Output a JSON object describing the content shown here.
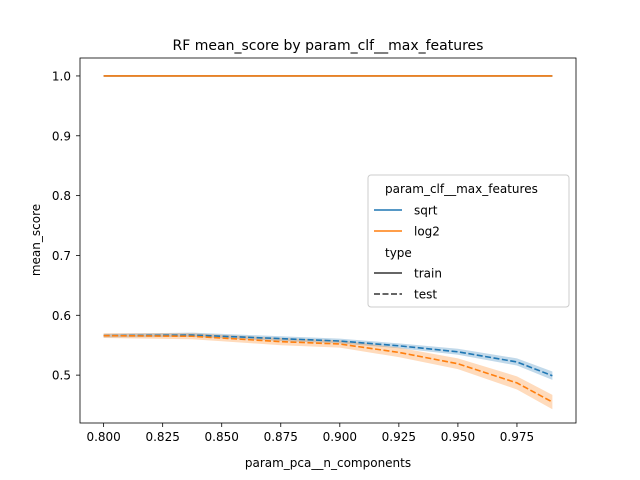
{
  "chart_data": {
    "type": "line",
    "title": "RF mean_score by param_clf__max_features",
    "xlabel": "param_pca__n_components",
    "ylabel": "mean_score",
    "xlim": [
      0.79,
      1.0
    ],
    "ylim": [
      0.42,
      1.03
    ],
    "xticks": [
      0.8,
      0.825,
      0.85,
      0.875,
      0.9,
      0.925,
      0.95,
      0.975
    ],
    "xtick_labels": [
      "0.800",
      "0.825",
      "0.850",
      "0.875",
      "0.900",
      "0.925",
      "0.950",
      "0.975"
    ],
    "yticks": [
      0.5,
      0.6,
      0.7,
      0.8,
      0.9,
      1.0
    ],
    "ytick_labels": [
      "0.5",
      "0.6",
      "0.7",
      "0.8",
      "0.9",
      "1.0"
    ],
    "grid": false,
    "x": [
      0.8,
      0.8375,
      0.875,
      0.9,
      0.925,
      0.95,
      0.975,
      0.99
    ],
    "series": [
      {
        "name": "sqrt",
        "type": "train",
        "color": "#1f77b4",
        "dash": false,
        "values": [
          1.0,
          1.0,
          1.0,
          1.0,
          1.0,
          1.0,
          1.0,
          1.0
        ]
      },
      {
        "name": "log2",
        "type": "train",
        "color": "#ff7f0e",
        "dash": false,
        "values": [
          1.0,
          1.0,
          1.0,
          1.0,
          1.0,
          1.0,
          1.0,
          1.0
        ]
      },
      {
        "name": "sqrt",
        "type": "test",
        "color": "#1f77b4",
        "dash": true,
        "values": [
          0.566,
          0.567,
          0.561,
          0.557,
          0.549,
          0.539,
          0.522,
          0.499
        ],
        "ci_lower": [
          0.563,
          0.564,
          0.557,
          0.553,
          0.545,
          0.534,
          0.516,
          0.492
        ],
        "ci_upper": [
          0.569,
          0.571,
          0.565,
          0.561,
          0.553,
          0.544,
          0.528,
          0.506
        ]
      },
      {
        "name": "log2",
        "type": "test",
        "color": "#ff7f0e",
        "dash": true,
        "values": [
          0.566,
          0.565,
          0.556,
          0.552,
          0.538,
          0.519,
          0.487,
          0.455
        ],
        "ci_lower": [
          0.562,
          0.56,
          0.55,
          0.546,
          0.53,
          0.51,
          0.476,
          0.443
        ],
        "ci_upper": [
          0.57,
          0.57,
          0.562,
          0.558,
          0.546,
          0.528,
          0.498,
          0.467
        ]
      }
    ],
    "legend": {
      "position": "center-right",
      "hue_title": "param_clf__max_features",
      "hue_entries": [
        {
          "label": "sqrt",
          "color": "#1f77b4"
        },
        {
          "label": "log2",
          "color": "#ff7f0e"
        }
      ],
      "style_title": "type",
      "style_entries": [
        {
          "label": "train",
          "dash": false
        },
        {
          "label": "test",
          "dash": true
        }
      ]
    }
  }
}
